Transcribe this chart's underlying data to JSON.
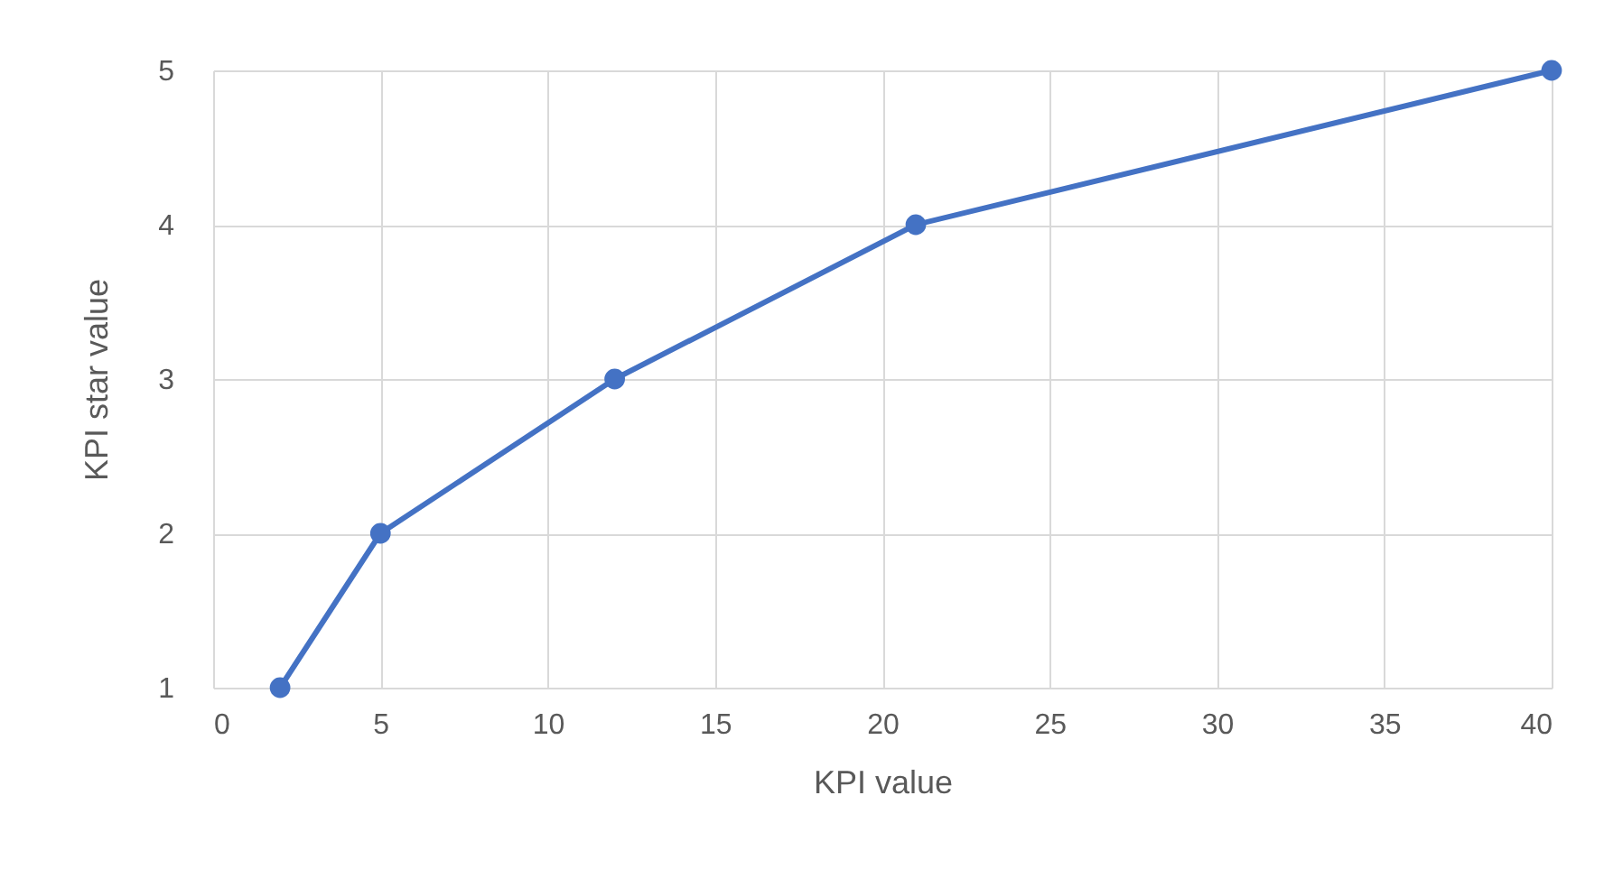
{
  "chart_data": {
    "type": "line",
    "xlabel": "KPI value",
    "ylabel": "KPI star value",
    "x": [
      2,
      5,
      12,
      21,
      40
    ],
    "series": [
      {
        "color": "#4472c4",
        "values": [
          1,
          2,
          3,
          4,
          5
        ]
      }
    ],
    "xlim": [
      0,
      40
    ],
    "xticks": [
      0,
      5,
      10,
      15,
      20,
      25,
      30,
      35,
      40
    ],
    "ylim": [
      1,
      5
    ],
    "yticks": [
      1,
      2,
      3,
      4,
      5
    ],
    "grid": true,
    "marker": "circle",
    "line_style": "solid"
  }
}
